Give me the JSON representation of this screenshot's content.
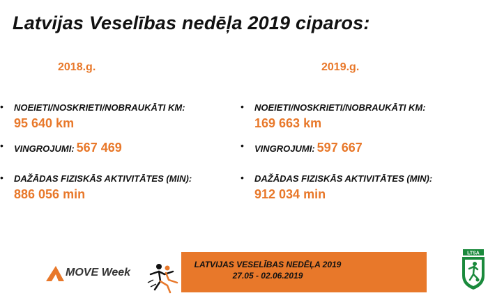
{
  "title": "Latvijas Veselības nedēļa 2019 ciparos:",
  "columns": [
    {
      "year": "2018.g.",
      "km_label": "NOEIETI/NOSKRIETI/NOBRAUKĀTI KM:",
      "km_value": "95 640 km",
      "ex_label": "VINGROJUMI:",
      "ex_value": "567 469",
      "act_label": "DAŽĀDAS FIZISKĀS AKTIVITĀTES (MIN):",
      "act_value": "886 056 min"
    },
    {
      "year": "2019.g.",
      "km_label": "NOEIETI/NOSKRIETI/NOBRAUKĀTI KM:",
      "km_value": "169 663 km",
      "ex_label": "VINGROJUMI:",
      "ex_value": "597 667",
      "act_label": "DAŽĀDAS FIZISKĀS AKTIVITĀTES (MIN):",
      "act_value": "912 034 min"
    }
  ],
  "footer": {
    "move_week": "MOVE Week",
    "banner_line1": "LATVIJAS VESELĪBAS NEDĒĻA 2019",
    "banner_line2": "27.05 - 02.06.2019",
    "emblem_text": "LTSA"
  },
  "colors": {
    "accent": "#e8782a",
    "text": "#111111"
  }
}
